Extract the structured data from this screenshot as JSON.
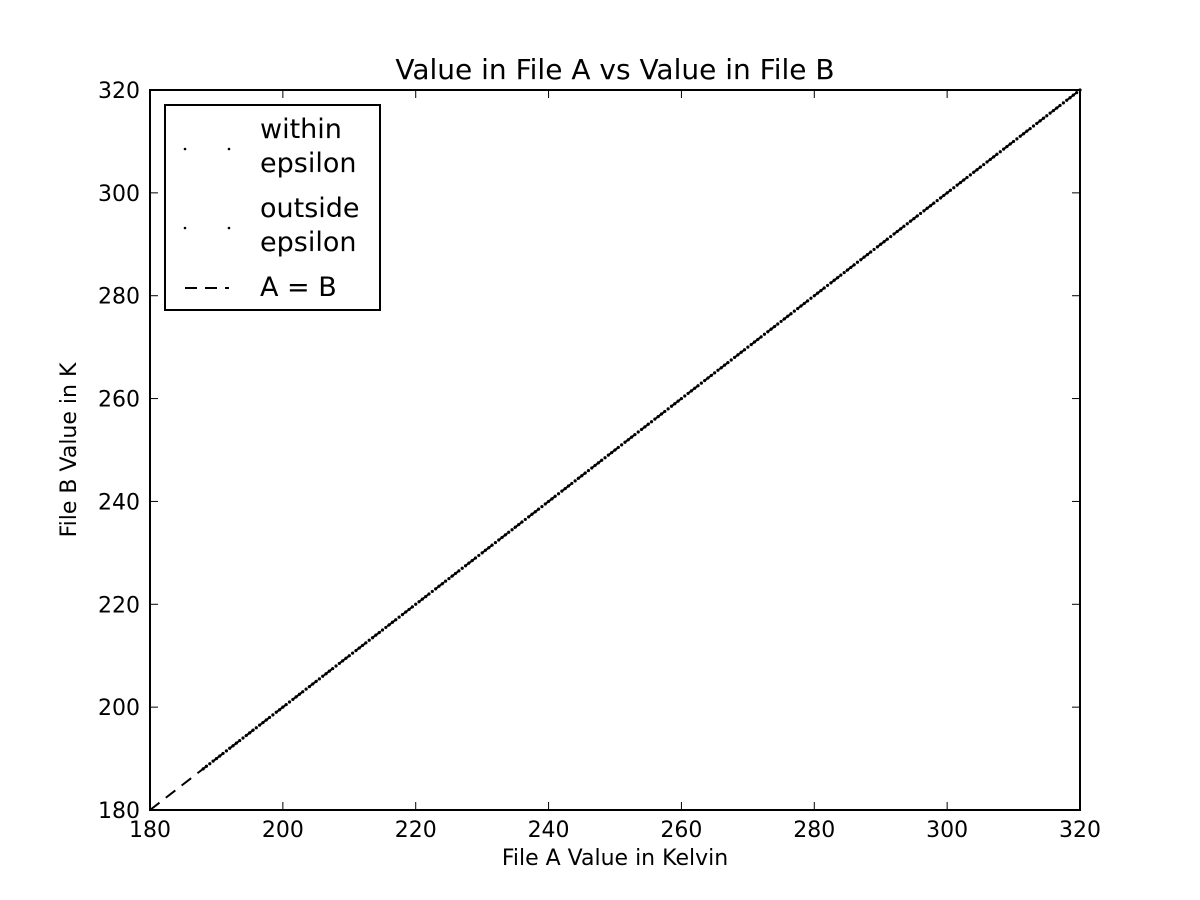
{
  "chart_data": {
    "type": "scatter",
    "title": "Value in File A vs Value in File B",
    "xlabel": "File A Value in Kelvin",
    "ylabel": "File B Value in K",
    "xlim": [
      180,
      320
    ],
    "ylim": [
      180,
      320
    ],
    "xticks": [
      180,
      200,
      220,
      240,
      260,
      280,
      300,
      320
    ],
    "yticks": [
      180,
      200,
      220,
      240,
      260,
      280,
      300,
      320
    ],
    "grid": false,
    "legend_position": "top-left",
    "series": [
      {
        "name": "within\nepsilon",
        "marker": "dot",
        "color": "#000000",
        "x_range": [
          188,
          320
        ],
        "relation": "y = x"
      },
      {
        "name": "outside\nepsilon",
        "marker": "dot",
        "color": "#000000",
        "x_range": [
          188,
          192
        ],
        "relation": "y = x"
      },
      {
        "name": "A = B",
        "style": "dashed",
        "color": "#000000",
        "x": [
          180,
          320
        ],
        "y": [
          180,
          320
        ]
      }
    ]
  }
}
